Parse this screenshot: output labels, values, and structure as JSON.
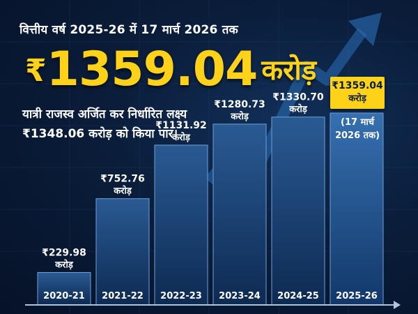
{
  "header": {
    "line": "वित्तीय वर्ष 2025-26 में 17 मार्च 2026 तक"
  },
  "highlight": {
    "rupee": "₹",
    "amount": "1359.04",
    "unit": "करोड़"
  },
  "description": {
    "line1": "यात्री राजस्व अर्जित कर निर्धारित लक्ष्य",
    "line2": "₹1348.06 करोड़ को किया पार।"
  },
  "current_badge": {
    "value": "₹1359.04",
    "unit": "करोड़",
    "note_line1": "(17 मार्च",
    "note_line2": "2026 तक)"
  },
  "colors": {
    "accent": "#ffd21a",
    "background": "#0a1d3a",
    "bar_top": "#2a5a93",
    "bar_bottom": "#0d2a52"
  },
  "chart_data": {
    "type": "bar",
    "categories": [
      "2020-21",
      "2021-22",
      "2022-23",
      "2023-24",
      "2024-25",
      "2025-26"
    ],
    "values": [
      229.98,
      752.76,
      1131.92,
      1280.73,
      1330.7,
      1359.04
    ],
    "value_labels": [
      "₹229.98",
      "₹752.76",
      "₹1131.92",
      "₹1280.73",
      "₹1330.70",
      ""
    ],
    "unit_label": "करोड़",
    "ylim": [
      0,
      1359.04
    ],
    "grid": false,
    "legend": "none"
  }
}
